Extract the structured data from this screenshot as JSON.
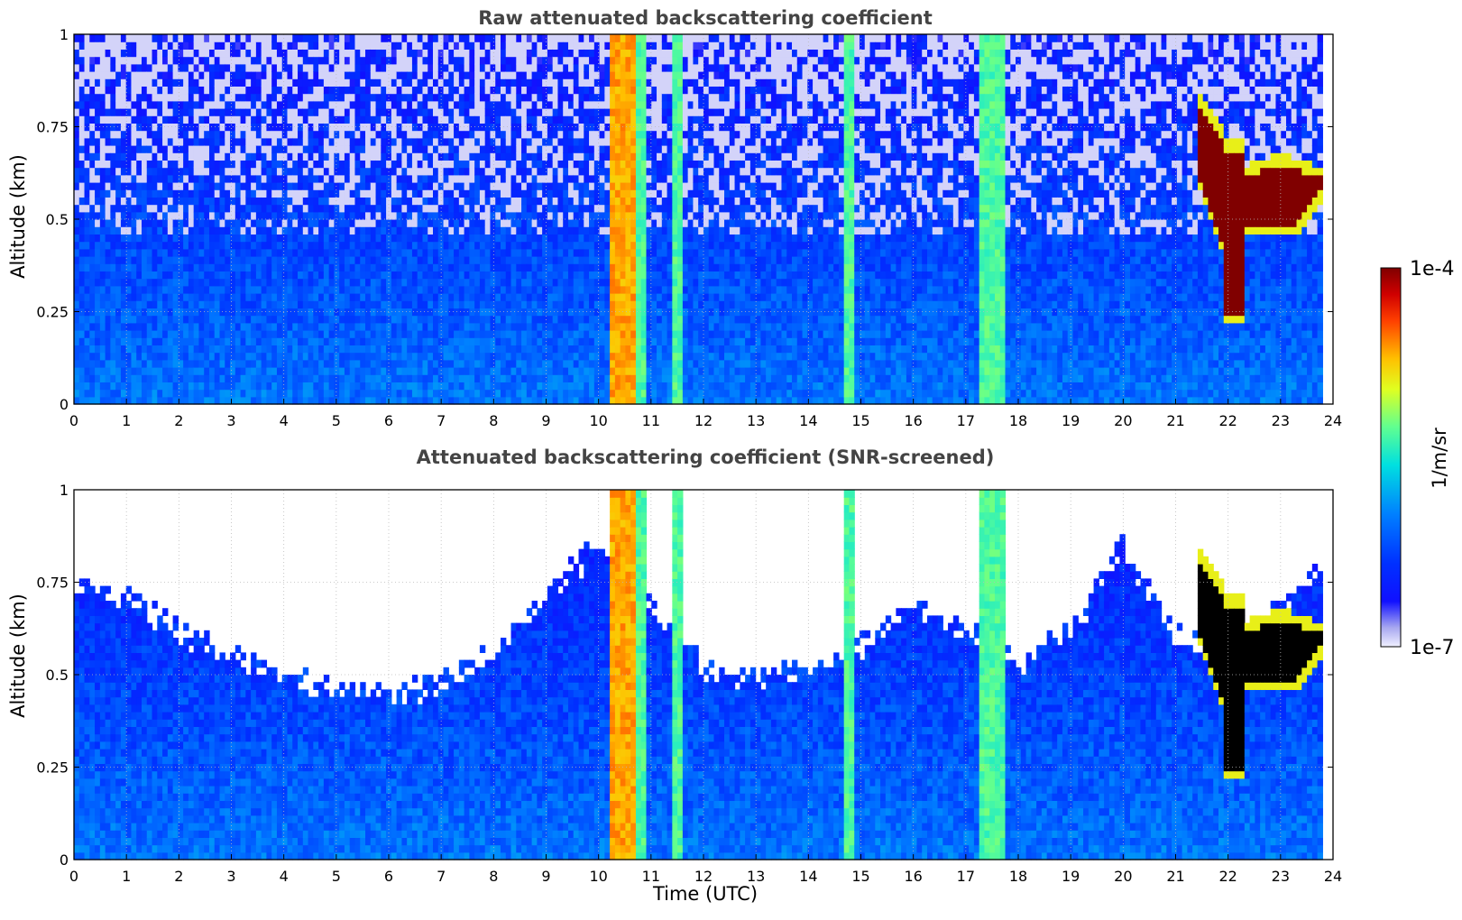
{
  "chart_data": [
    {
      "type": "heatmap",
      "title": "Raw attenuated backscattering coefficient",
      "xlabel": "",
      "ylabel": "Altitude (km)",
      "xlim": [
        0,
        24
      ],
      "ylim": [
        0,
        1
      ],
      "xticks": [
        0,
        1,
        2,
        3,
        4,
        5,
        6,
        7,
        8,
        9,
        10,
        11,
        12,
        13,
        14,
        15,
        16,
        17,
        18,
        19,
        20,
        21,
        22,
        23,
        24
      ],
      "yticks": [
        0,
        0.25,
        0.5,
        0.75,
        1
      ],
      "ytick_labels": [
        "0",
        "0.25",
        "0.5",
        "0.75",
        "1"
      ],
      "grid": true,
      "screened": false,
      "data_end_time": 23.8,
      "features": [
        {
          "kind": "vertical-band",
          "start": 10.2,
          "end": 10.7,
          "level": "high"
        },
        {
          "kind": "vertical-band",
          "start": 10.75,
          "end": 10.95,
          "level": "mid"
        },
        {
          "kind": "vertical-band",
          "start": 11.4,
          "end": 11.6,
          "level": "mid"
        },
        {
          "kind": "vertical-band",
          "start": 14.7,
          "end": 14.9,
          "level": "mid"
        },
        {
          "kind": "vertical-band",
          "start": 17.3,
          "end": 17.75,
          "level": "mid"
        },
        {
          "kind": "cloud",
          "start": 21.4,
          "end": 23.8,
          "altitude": [
            0.2,
            0.85
          ],
          "level": "max"
        }
      ]
    },
    {
      "type": "heatmap",
      "title": "Attenuated backscattering coefficient (SNR-screened)",
      "xlabel": "Time (UTC)",
      "ylabel": "Altitude (km)",
      "xlim": [
        0,
        24
      ],
      "ylim": [
        0,
        1
      ],
      "xticks": [
        0,
        1,
        2,
        3,
        4,
        5,
        6,
        7,
        8,
        9,
        10,
        11,
        12,
        13,
        14,
        15,
        16,
        17,
        18,
        19,
        20,
        21,
        22,
        23,
        24
      ],
      "yticks": [
        0,
        0.25,
        0.5,
        0.75,
        1
      ],
      "ytick_labels": [
        "0",
        "0.25",
        "0.5",
        "0.75",
        "1"
      ],
      "grid": true,
      "screened": true,
      "data_end_time": 23.8,
      "screen_top_km": [
        {
          "t": 0,
          "alt": 0.75
        },
        {
          "t": 1,
          "alt": 0.7
        },
        {
          "t": 2,
          "alt": 0.62
        },
        {
          "t": 3,
          "alt": 0.55
        },
        {
          "t": 4,
          "alt": 0.5
        },
        {
          "t": 5,
          "alt": 0.47
        },
        {
          "t": 6,
          "alt": 0.45
        },
        {
          "t": 7,
          "alt": 0.48
        },
        {
          "t": 8,
          "alt": 0.56
        },
        {
          "t": 9,
          "alt": 0.72
        },
        {
          "t": 10,
          "alt": 0.85
        },
        {
          "t": 11,
          "alt": 0.7
        },
        {
          "t": 12,
          "alt": 0.52
        },
        {
          "t": 13,
          "alt": 0.49
        },
        {
          "t": 14,
          "alt": 0.52
        },
        {
          "t": 15,
          "alt": 0.58
        },
        {
          "t": 16,
          "alt": 0.68
        },
        {
          "t": 17,
          "alt": 0.62
        },
        {
          "t": 18,
          "alt": 0.52
        },
        {
          "t": 19,
          "alt": 0.62
        },
        {
          "t": 20,
          "alt": 0.85
        },
        {
          "t": 21,
          "alt": 0.6
        },
        {
          "t": 22,
          "alt": 0.55
        },
        {
          "t": 23,
          "alt": 0.7
        },
        {
          "t": 23.8,
          "alt": 0.8
        }
      ]
    }
  ],
  "colorbar": {
    "label": "1/m/sr",
    "max_label": "1e-4",
    "min_label": "1e-7",
    "scale": "log",
    "colormap": "jet"
  },
  "colors": {
    "title": "#444444",
    "background": "#ffffff",
    "screened": "#ffffff",
    "saturated": "#000000"
  }
}
